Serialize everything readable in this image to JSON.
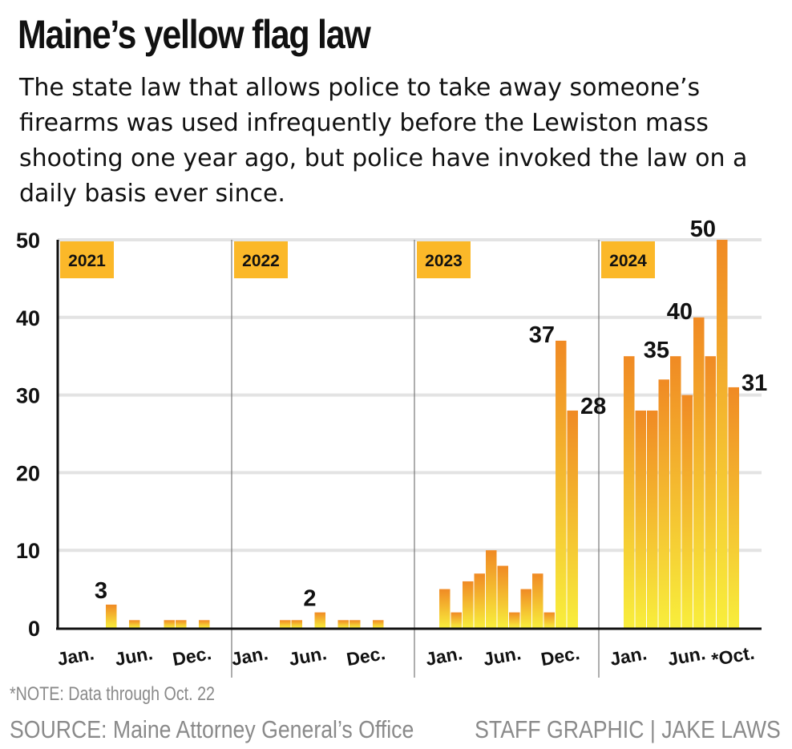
{
  "chart_data": {
    "type": "bar",
    "title": "Maine’s yellow flag law",
    "subtitle": "The state law that allows police to take away someone’s firearms was used infrequently before the Lewiston mass shooting one year ago, but police have invoked the law on a daily basis ever since.",
    "xlabel": "",
    "ylabel": "",
    "ylim": [
      0,
      50
    ],
    "yticks": [
      "0",
      "10",
      "20",
      "30",
      "40",
      "50"
    ],
    "grid": true,
    "bar_color_top": "#f08a24",
    "bar_color_bottom": "#f8ee3c",
    "year_badge_color": "#fbb829",
    "panels": [
      {
        "year": "2021",
        "values": [
          0,
          0,
          0,
          0,
          3,
          0,
          1,
          0,
          0,
          1,
          1,
          0,
          1
        ],
        "tick_labels": [
          {
            "label": "Jan.",
            "index": 1
          },
          {
            "label": "Jun.",
            "index": 6
          },
          {
            "label": "Dec.",
            "index": 11
          }
        ],
        "data_labels": [
          {
            "index": 4,
            "text": "3"
          }
        ]
      },
      {
        "year": "2022",
        "values": [
          0,
          0,
          0,
          0,
          1,
          1,
          0,
          2,
          0,
          1,
          1,
          0,
          1
        ],
        "tick_labels": [
          {
            "label": "Jan.",
            "index": 1
          },
          {
            "label": "Jun.",
            "index": 6
          },
          {
            "label": "Dec.",
            "index": 11
          }
        ],
        "data_labels": [
          {
            "index": 7,
            "text": "2"
          }
        ]
      },
      {
        "year": "2023",
        "values": [
          0,
          0,
          5,
          2,
          6,
          7,
          10,
          8,
          2,
          5,
          7,
          2,
          37,
          28
        ],
        "tick_labels": [
          {
            "label": "Jan.",
            "index": 2
          },
          {
            "label": "Jun.",
            "index": 7
          },
          {
            "label": "Dec.",
            "index": 12
          }
        ],
        "data_labels": [
          {
            "index": 12,
            "text": "37",
            "side": "left"
          },
          {
            "index": 13,
            "text": "28",
            "side": "right"
          }
        ]
      },
      {
        "year": "2024",
        "values": [
          0,
          0,
          35,
          28,
          28,
          32,
          35,
          30,
          40,
          35,
          50,
          31
        ],
        "tick_labels": [
          {
            "label": "Jan.",
            "index": 2
          },
          {
            "label": "Jun.",
            "index": 7
          },
          {
            "label": "*Oct.",
            "index": 11
          }
        ],
        "data_labels": [
          {
            "index": 6,
            "text": "35",
            "side": "left"
          },
          {
            "index": 8,
            "text": "40",
            "side": "left"
          },
          {
            "index": 10,
            "text": "50",
            "side": "left"
          },
          {
            "index": 11,
            "text": "31",
            "side": "right"
          }
        ]
      }
    ]
  },
  "footer": {
    "note": "*NOTE: Data through Oct. 22",
    "source": "SOURCE: Maine Attorney General’s Office",
    "credit": "STAFF GRAPHIC | JAKE LAWS"
  }
}
